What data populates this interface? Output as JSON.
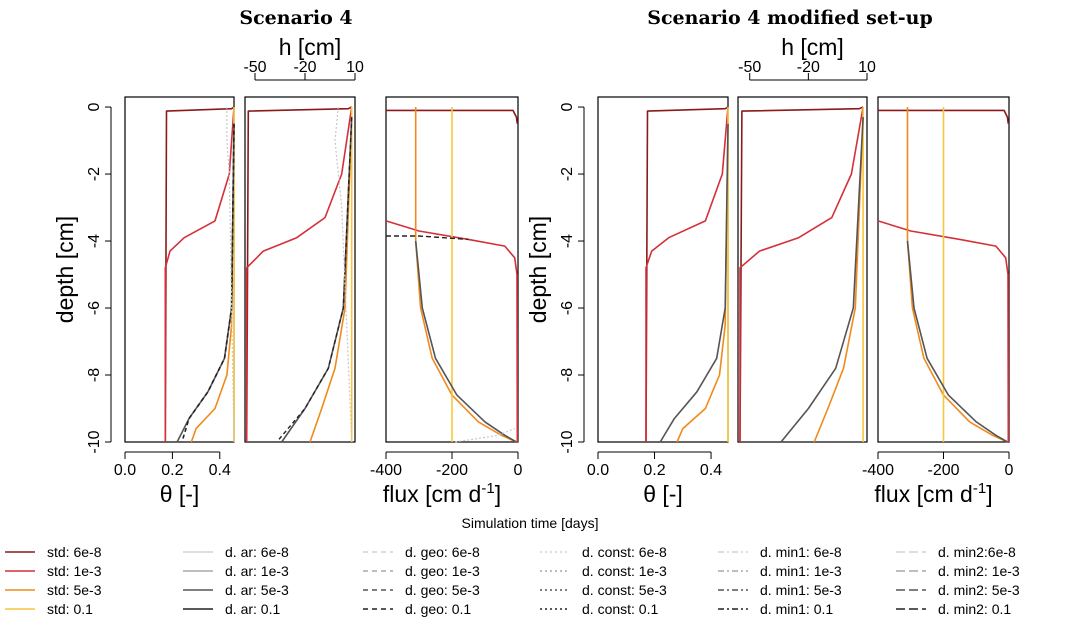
{
  "chart_data": {
    "type": "line",
    "figure_title_left": "Scenario 4",
    "figure_title_right": "Scenario 4 modified set-up",
    "ylabel": "depth [cm]",
    "ylim": [
      -10,
      0.3
    ],
    "yticks": [
      "0",
      "-2",
      "-4",
      "-6",
      "-8",
      "-10"
    ],
    "panels": [
      {
        "xlabel": "θ [-]",
        "xlim": [
          0,
          0.46
        ],
        "xticks": [
          "0.0",
          "0.2",
          "0.4"
        ],
        "xticks_pos": [
          0,
          0.2,
          0.4
        ],
        "axis": "bottom"
      },
      {
        "xlabel": "h [cm]",
        "xlim": [
          -56,
          10
        ],
        "xticks": [
          "-50",
          "-20",
          "10"
        ],
        "xticks_pos": [
          -50,
          -20,
          10
        ],
        "axis": "top"
      },
      {
        "xlabel": "flux [cm d",
        "xlabel_sup": "-1",
        "xlabel_close": "]",
        "xlim": [
          -400,
          0
        ],
        "xticks": [
          "-400",
          "-200",
          "0"
        ],
        "xticks_pos": [
          -400,
          -200,
          0
        ],
        "axis": "bottom"
      }
    ],
    "legend_title": "Simulation time [days]",
    "legend": [
      [
        "std: 6e-8",
        "std: 1e-3",
        "std: 5e-3",
        "std: 0.1"
      ],
      [
        "d. ar:  6e-8",
        "d. ar: 1e-3",
        "d. ar: 5e-3",
        "d. ar: 0.1"
      ],
      [
        "d. geo: 6e-8",
        "d. geo: 1e-3",
        "d. geo: 5e-3",
        "d. geo: 0.1"
      ],
      [
        "d. const: 6e-8",
        "d. const: 1e-3",
        "d. const: 5e-3",
        "d. const: 0.1"
      ],
      [
        "d. min1: 6e-8",
        "d. min1: 1e-3",
        "d. min1: 5e-3",
        "d. min1: 0.1"
      ],
      [
        "d. min2:6e-8",
        "d. min2: 1e-3",
        "d. min2: 5e-3",
        "d. min2: 0.1"
      ]
    ],
    "legend_colors": [
      [
        "#8b1a1a",
        "#d62f3a",
        "#f08a1c",
        "#f7c63c"
      ],
      [
        "#d3d3d3",
        "#a9a9a9",
        "#555555",
        "#222222"
      ],
      [
        "#d3d3d3",
        "#a9a9a9",
        "#555555",
        "#222222"
      ],
      [
        "#d3d3d3",
        "#a9a9a9",
        "#555555",
        "#222222"
      ],
      [
        "#d3d3d3",
        "#a9a9a9",
        "#555555",
        "#222222"
      ],
      [
        "#d3d3d3",
        "#a9a9a9",
        "#555555",
        "#222222"
      ]
    ],
    "series": [
      {
        "name": "std: 6e-8",
        "panel": "theta",
        "points": [
          [
            0.46,
            0.0
          ],
          [
            0.45,
            -0.05
          ],
          [
            0.175,
            -0.12
          ],
          [
            0.17,
            -10
          ]
        ]
      },
      {
        "name": "std: 1e-3",
        "panel": "theta",
        "points": [
          [
            0.46,
            0.0
          ],
          [
            0.44,
            -2.0
          ],
          [
            0.38,
            -3.4
          ],
          [
            0.25,
            -3.9
          ],
          [
            0.19,
            -4.3
          ],
          [
            0.17,
            -4.8
          ],
          [
            0.17,
            -10
          ]
        ]
      },
      {
        "name": "std: 5e-3",
        "panel": "theta",
        "points": [
          [
            0.46,
            -0.5
          ],
          [
            0.45,
            -6.5
          ],
          [
            0.43,
            -8.0
          ],
          [
            0.38,
            -9.0
          ],
          [
            0.3,
            -9.6
          ],
          [
            0.28,
            -10
          ]
        ]
      },
      {
        "name": "std: 0.1",
        "panel": "theta",
        "points": [
          [
            0.46,
            0.0
          ],
          [
            0.46,
            -10
          ]
        ]
      },
      {
        "name": "d. ar: 5e-3",
        "panel": "theta",
        "points": [
          [
            0.46,
            -0.5
          ],
          [
            0.45,
            -6.0
          ],
          [
            0.42,
            -7.5
          ],
          [
            0.35,
            -8.5
          ],
          [
            0.27,
            -9.3
          ],
          [
            0.22,
            -10
          ]
        ]
      },
      {
        "name": "d. ar: 0.1",
        "panel": "theta",
        "points": [
          [
            0.46,
            -0.5
          ],
          [
            0.45,
            -6.0
          ],
          [
            0.42,
            -7.5
          ],
          [
            0.35,
            -8.5
          ],
          [
            0.27,
            -9.3
          ],
          [
            0.24,
            -10
          ]
        ]
      },
      {
        "name": "d. const: 6e-8",
        "panel": "theta",
        "points": [
          [
            0.43,
            0.0
          ],
          [
            0.43,
            -1.0
          ],
          [
            0.44,
            -2.0
          ],
          [
            0.46,
            -10
          ]
        ]
      }
    ]
  }
}
